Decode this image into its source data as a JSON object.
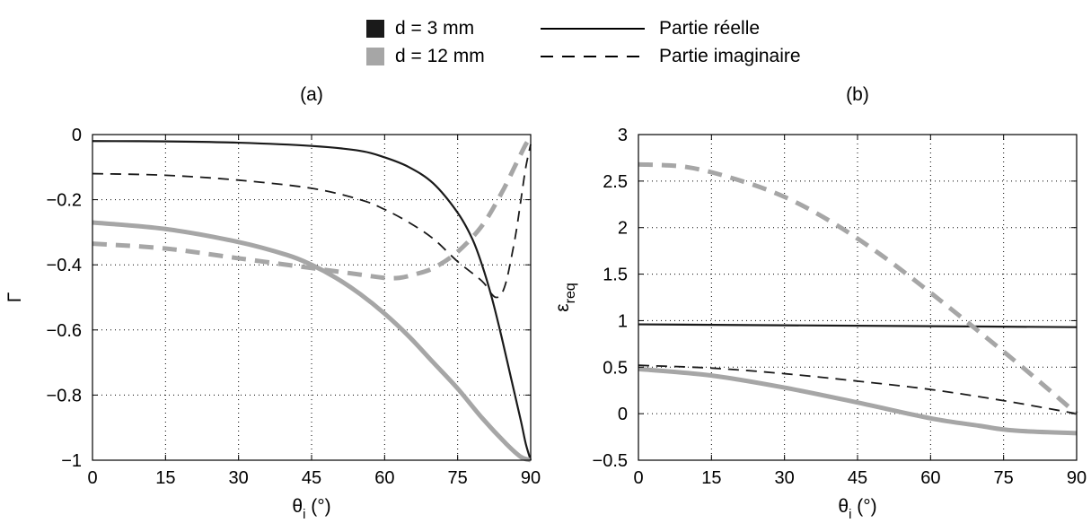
{
  "legend": {
    "d3": "d = 3 mm",
    "d12": "d = 12 mm",
    "real": "Partie réelle",
    "imag": "Partie imaginaire",
    "colors": {
      "d3": "#1a1a1a",
      "d12": "#a6a6a6"
    }
  },
  "chart_data": [
    {
      "type": "line",
      "title": "(a)",
      "xlabel": "θi (°)",
      "ylabel": "Γ",
      "xlim": [
        0,
        90
      ],
      "ylim": [
        -1,
        0
      ],
      "xticks": [
        0,
        15,
        30,
        45,
        60,
        75,
        90
      ],
      "yticks": [
        0,
        -0.2,
        -0.4,
        -0.6,
        -0.8,
        -1
      ],
      "ytick_labels": [
        "0",
        "−0.2",
        "−0.4",
        "−0.6",
        "−0.8",
        "−1"
      ],
      "grid": true,
      "series": [
        {
          "name": "d = 3 mm, Partie réelle",
          "style": "solid-dark",
          "x": [
            0,
            15,
            30,
            45,
            55,
            60,
            65,
            70,
            75,
            78,
            80,
            82,
            84,
            86,
            88,
            89,
            90
          ],
          "y": [
            -0.02,
            -0.021,
            -0.025,
            -0.035,
            -0.05,
            -0.07,
            -0.1,
            -0.15,
            -0.24,
            -0.32,
            -0.4,
            -0.5,
            -0.62,
            -0.75,
            -0.88,
            -0.95,
            -1.0
          ]
        },
        {
          "name": "d = 3 mm, Partie imaginaire",
          "style": "dashed-dark",
          "x": [
            0,
            15,
            30,
            45,
            55,
            60,
            65,
            70,
            75,
            80,
            82,
            83,
            84,
            85,
            86,
            87,
            88,
            89,
            90
          ],
          "y": [
            -0.12,
            -0.125,
            -0.14,
            -0.165,
            -0.2,
            -0.23,
            -0.27,
            -0.32,
            -0.39,
            -0.45,
            -0.49,
            -0.5,
            -0.49,
            -0.45,
            -0.38,
            -0.3,
            -0.2,
            -0.1,
            -0.03
          ]
        },
        {
          "name": "d = 12 mm, Partie réelle",
          "style": "solid-grey",
          "x": [
            0,
            15,
            30,
            40,
            45,
            50,
            55,
            60,
            65,
            70,
            75,
            80,
            85,
            88,
            90
          ],
          "y": [
            -0.27,
            -0.29,
            -0.33,
            -0.37,
            -0.4,
            -0.44,
            -0.49,
            -0.55,
            -0.62,
            -0.7,
            -0.78,
            -0.87,
            -0.95,
            -0.99,
            -1.0
          ]
        },
        {
          "name": "d = 12 mm, Partie imaginaire",
          "style": "dashed-grey",
          "x": [
            0,
            15,
            30,
            45,
            55,
            60,
            63,
            66,
            70,
            75,
            80,
            84,
            87,
            89,
            90
          ],
          "y": [
            -0.335,
            -0.35,
            -0.38,
            -0.41,
            -0.43,
            -0.44,
            -0.44,
            -0.43,
            -0.41,
            -0.36,
            -0.28,
            -0.18,
            -0.09,
            -0.03,
            -0.01
          ]
        }
      ]
    },
    {
      "type": "line",
      "title": "(b)",
      "xlabel": "θi (°)",
      "ylabel": "εreq",
      "xlim": [
        0,
        90
      ],
      "ylim": [
        -0.5,
        3
      ],
      "xticks": [
        0,
        15,
        30,
        45,
        60,
        75,
        90
      ],
      "yticks": [
        3,
        2.5,
        2,
        1.5,
        1,
        0.5,
        0,
        -0.5
      ],
      "ytick_labels": [
        "3",
        "2.5",
        "2",
        "1.5",
        "1",
        "0.5",
        "0",
        "−0.5"
      ],
      "grid": true,
      "series": [
        {
          "name": "d = 3 mm, Partie réelle",
          "style": "solid-dark",
          "x": [
            0,
            30,
            60,
            90
          ],
          "y": [
            0.96,
            0.95,
            0.94,
            0.93
          ]
        },
        {
          "name": "d = 3 mm, Partie imaginaire",
          "style": "dashed-dark",
          "x": [
            0,
            15,
            30,
            45,
            60,
            75,
            90
          ],
          "y": [
            0.52,
            0.49,
            0.43,
            0.35,
            0.26,
            0.14,
            0.0
          ]
        },
        {
          "name": "d = 12 mm, Partie réelle",
          "style": "solid-grey",
          "x": [
            0,
            15,
            30,
            45,
            60,
            70,
            75,
            80,
            90
          ],
          "y": [
            0.48,
            0.41,
            0.28,
            0.12,
            -0.05,
            -0.13,
            -0.17,
            -0.19,
            -0.21
          ]
        },
        {
          "name": "d = 12 mm, Partie imaginaire",
          "style": "dashed-grey",
          "x": [
            0,
            10,
            20,
            30,
            40,
            50,
            60,
            70,
            80,
            90
          ],
          "y": [
            2.68,
            2.65,
            2.52,
            2.33,
            2.05,
            1.7,
            1.3,
            0.88,
            0.45,
            0.0
          ]
        }
      ]
    }
  ]
}
